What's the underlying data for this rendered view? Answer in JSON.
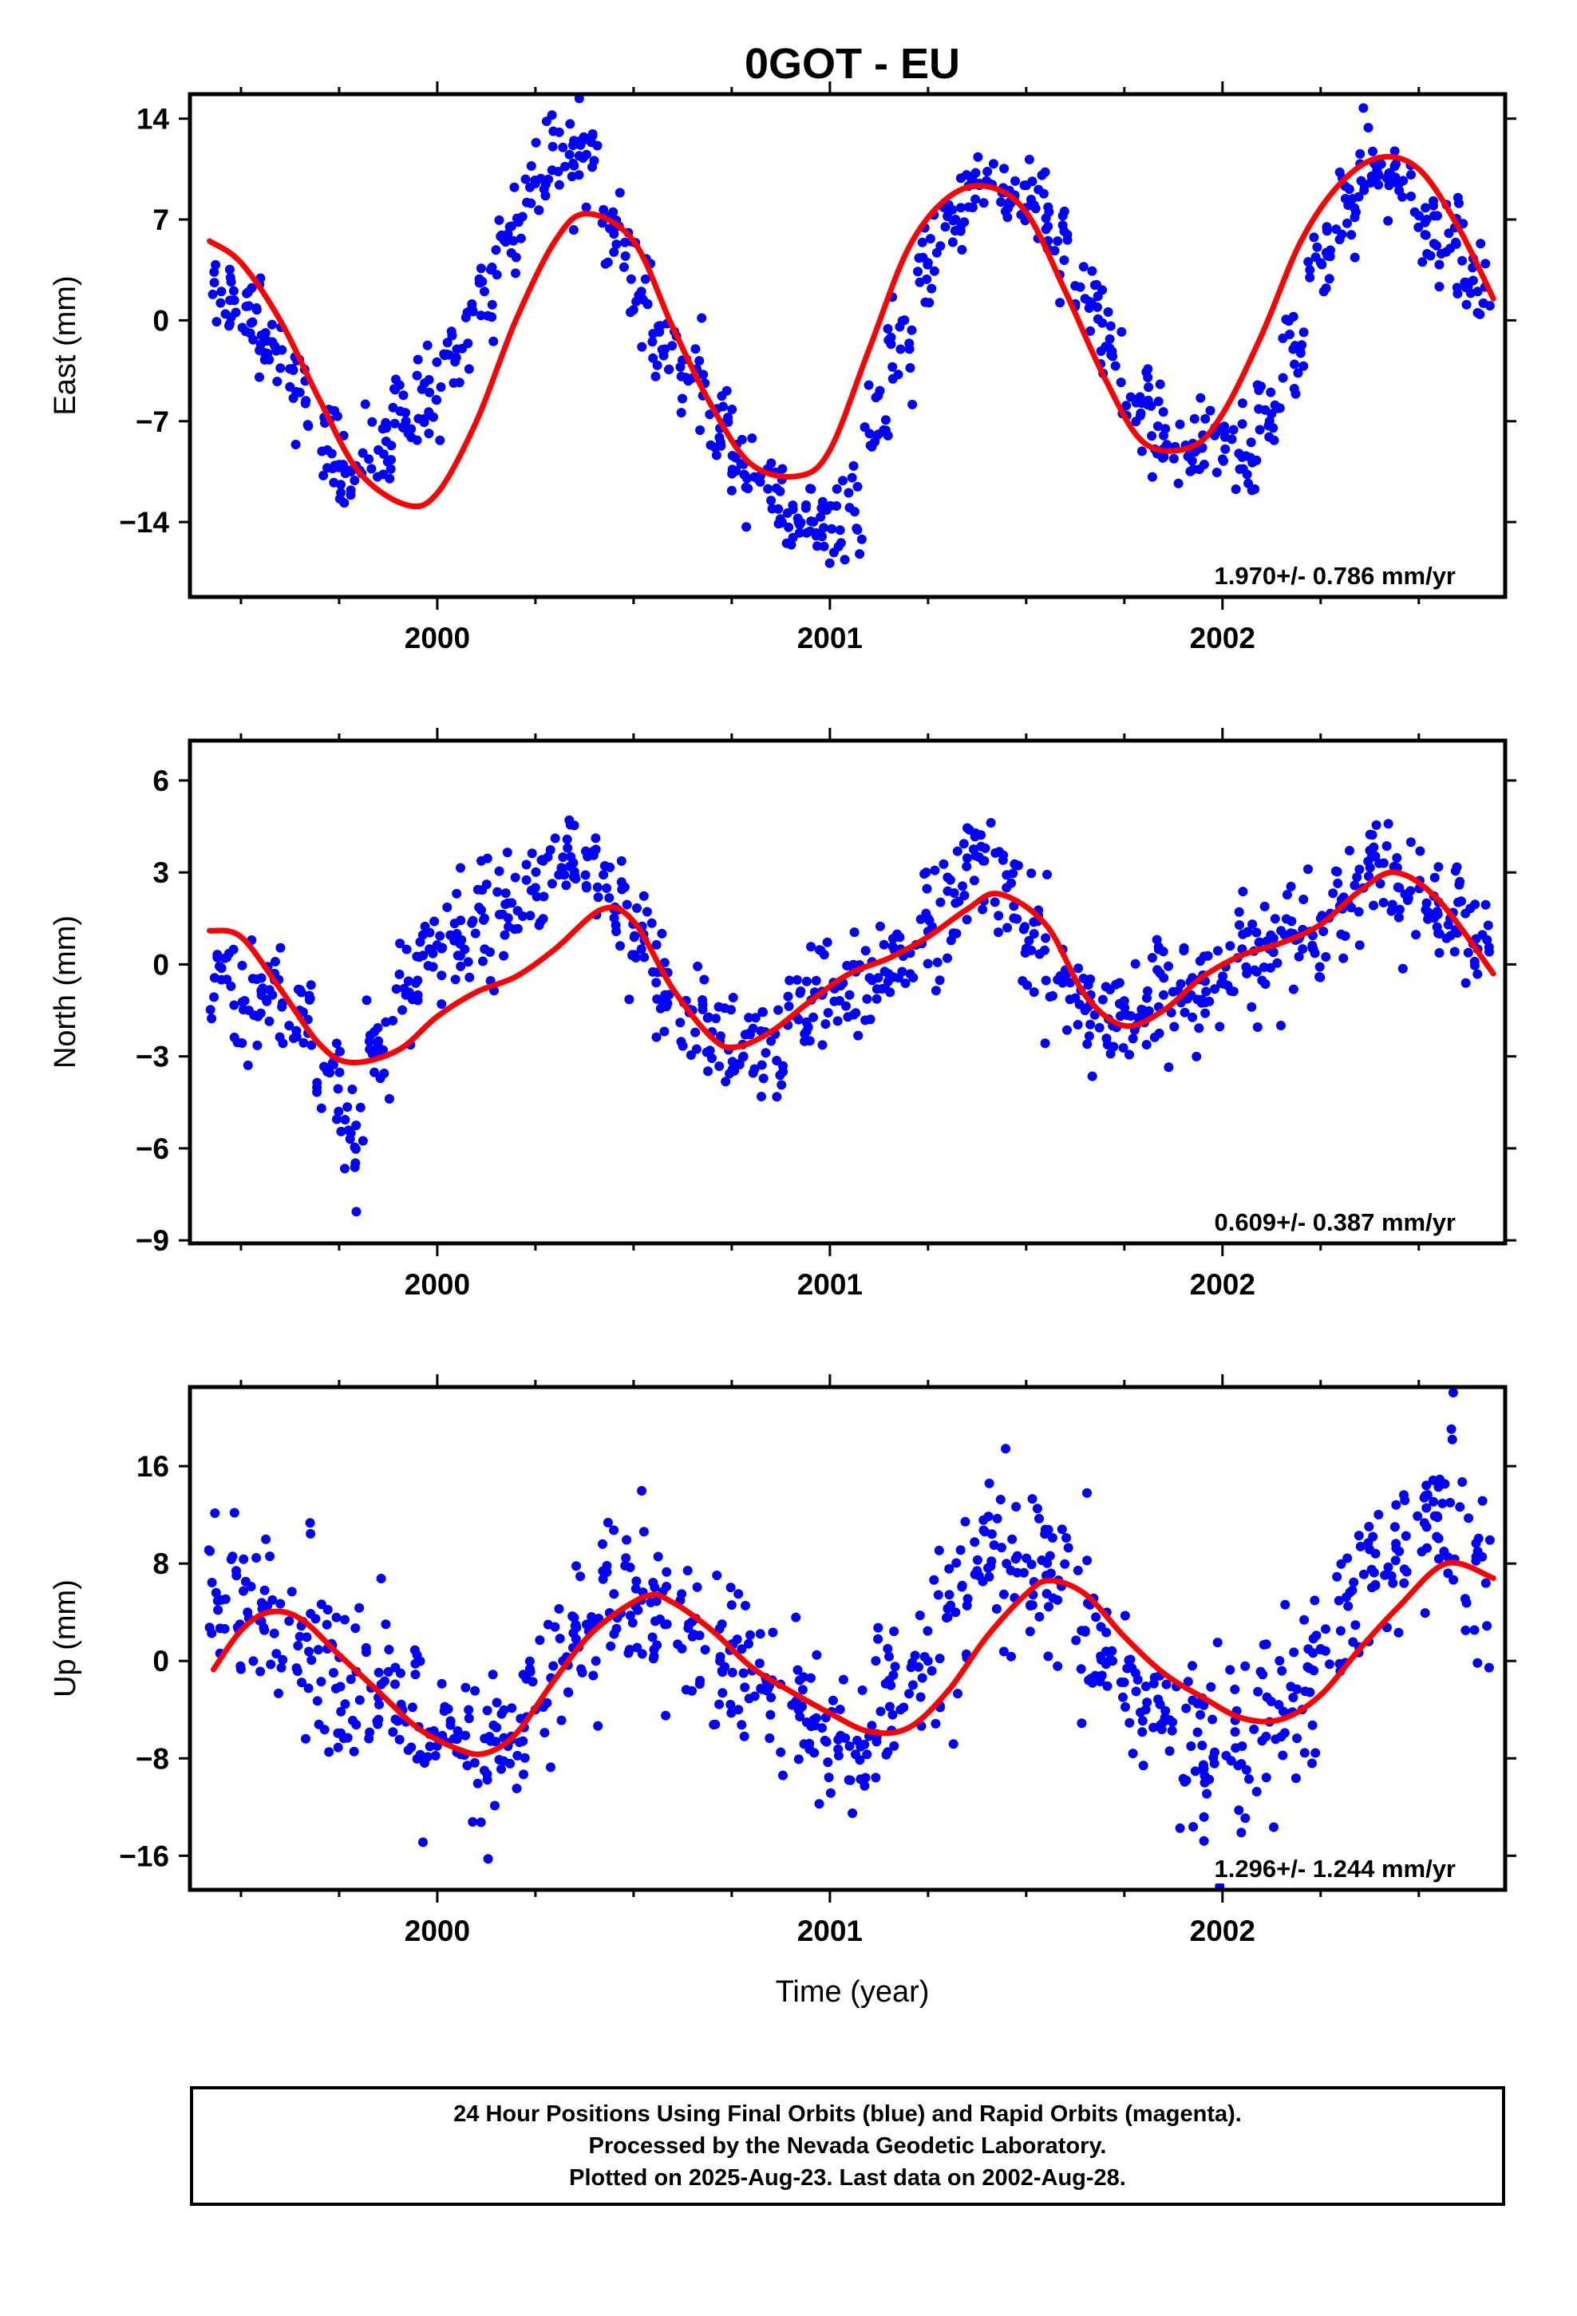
{
  "title": "0GOT - EU",
  "xlabel": "Time (year)",
  "footer": {
    "line1": "24 Hour Positions Using Final Orbits (blue) and Rapid Orbits (magenta).",
    "line2": "Processed by the Nevada Geodetic Laboratory.",
    "line3": "Plotted on 2025-Aug-23. Last data on 2002-Aug-28."
  },
  "colors": {
    "points": "#0000ff",
    "fit": "#ff0000",
    "axes": "#000000"
  },
  "chart_data": [
    {
      "type": "scatter",
      "component": "east",
      "ylabel": "East (mm)",
      "rate_label": "1.970+/- 0.786 mm/yr",
      "xlim": [
        1999.37,
        2002.72
      ],
      "ylim": [
        -19.2,
        15.7
      ],
      "yticks": [
        14,
        7,
        0,
        -7,
        -14
      ],
      "ytick_labels": [
        "14",
        "7",
        "0",
        "−7",
        "−14"
      ],
      "xticks": [
        2000,
        2001,
        2002
      ],
      "xtick_labels": [
        "2000",
        "2001",
        "2002"
      ],
      "series": [
        {
          "kind": "points",
          "x": [
            1999.45,
            1999.52,
            1999.58,
            1999.65,
            1999.72,
            1999.78,
            1999.85,
            1999.92,
            1999.98,
            2000.05,
            2000.12,
            2000.18,
            2000.25,
            2000.32,
            2000.38,
            2000.45,
            2000.52,
            2000.58,
            2000.65,
            2000.72,
            2000.78,
            2000.85,
            2000.92,
            2000.98,
            2001.05,
            2001.12,
            2001.18,
            2001.25,
            2001.32,
            2001.38,
            2001.45,
            2001.52,
            2001.58,
            2001.65,
            2001.72,
            2001.78,
            2001.85,
            2001.92,
            2001.98,
            2002.05,
            2002.12,
            2002.18,
            2002.25,
            2002.32,
            2002.38,
            2002.45,
            2002.52,
            2002.58,
            2002.65
          ],
          "y": [
            2.0,
            1.0,
            -1.5,
            -5.0,
            -9.0,
            -10.5,
            -9.0,
            -7.0,
            -5.0,
            -2.0,
            2.0,
            6.0,
            9.5,
            12.0,
            11.5,
            6.0,
            2.0,
            -2.0,
            -4.0,
            -7.5,
            -10.0,
            -12.5,
            -14.0,
            -15.0,
            -13.0,
            -8.0,
            -2.0,
            4.0,
            7.0,
            9.5,
            9.0,
            8.0,
            5.5,
            1.5,
            -2.5,
            -5.5,
            -8.0,
            -9.0,
            -8.0,
            -9.5,
            -7.0,
            -2.0,
            4.0,
            8.0,
            10.0,
            9.5,
            7.0,
            5.0,
            2.0
          ]
        },
        {
          "kind": "fit",
          "x": [
            1999.42,
            1999.5,
            1999.6,
            1999.7,
            1999.8,
            1999.92,
            2000.0,
            2000.1,
            2000.2,
            2000.3,
            2000.38,
            2000.5,
            2000.6,
            2000.7,
            2000.8,
            2000.92,
            2001.0,
            2001.1,
            2001.2,
            2001.3,
            2001.4,
            2001.5,
            2001.6,
            2001.7,
            2001.8,
            2001.92,
            2002.0,
            2002.1,
            2002.2,
            2002.3,
            2002.4,
            2002.5,
            2002.6,
            2002.69
          ],
          "y": [
            5.5,
            4.0,
            0.0,
            -5.5,
            -10.5,
            -12.8,
            -12.0,
            -7.0,
            0.0,
            5.5,
            7.4,
            5.5,
            -0.5,
            -6.0,
            -10.0,
            -10.8,
            -9.0,
            -2.0,
            5.0,
            8.5,
            9.3,
            7.5,
            2.0,
            -4.0,
            -8.5,
            -8.8,
            -6.5,
            -1.0,
            5.5,
            9.5,
            11.3,
            10.5,
            6.5,
            1.5
          ]
        }
      ]
    },
    {
      "type": "scatter",
      "component": "north",
      "ylabel": "North (mm)",
      "rate_label": "0.609+/- 0.387 mm/yr",
      "xlim": [
        1999.37,
        2002.72
      ],
      "ylim": [
        -9.1,
        7.3
      ],
      "yticks": [
        6,
        3,
        0,
        -3,
        -6,
        -9
      ],
      "ytick_labels": [
        "6",
        "3",
        "0",
        "−3",
        "−6",
        "−9"
      ],
      "xticks": [
        2000,
        2001,
        2002
      ],
      "xtick_labels": [
        "2000",
        "2001",
        "2002"
      ],
      "series": [
        {
          "kind": "points",
          "x": [
            1999.45,
            1999.52,
            1999.58,
            1999.65,
            1999.72,
            1999.78,
            1999.85,
            1999.92,
            1999.98,
            2000.05,
            2000.12,
            2000.18,
            2000.25,
            2000.32,
            2000.38,
            2000.45,
            2000.52,
            2000.58,
            2000.65,
            2000.72,
            2000.78,
            2000.85,
            2000.92,
            2000.98,
            2001.05,
            2001.12,
            2001.18,
            2001.25,
            2001.32,
            2001.38,
            2001.45,
            2001.52,
            2001.58,
            2001.65,
            2001.72,
            2001.78,
            2001.85,
            2001.92,
            2001.98,
            2002.05,
            2002.12,
            2002.18,
            2002.25,
            2002.32,
            2002.38,
            2002.45,
            2002.52,
            2002.58,
            2002.65
          ],
          "y": [
            -0.5,
            -1.5,
            -1.0,
            -1.5,
            -3.5,
            -5.5,
            -2.5,
            -1.0,
            0.5,
            1.0,
            1.5,
            2.0,
            2.5,
            3.5,
            2.5,
            1.8,
            0.5,
            -1.0,
            -1.5,
            -2.5,
            -3.0,
            -2.5,
            -1.8,
            -1.0,
            -1.0,
            -0.8,
            0.5,
            1.5,
            2.0,
            3.5,
            2.5,
            1.0,
            -0.5,
            -1.5,
            -2.0,
            -2.0,
            -1.0,
            -1.0,
            -0.8,
            0.5,
            0.5,
            1.0,
            1.5,
            2.0,
            3.5,
            2.5,
            2.0,
            1.5,
            0.5
          ]
        },
        {
          "kind": "fit",
          "x": [
            1999.42,
            1999.5,
            1999.6,
            1999.7,
            1999.78,
            1999.9,
            2000.0,
            2000.1,
            2000.2,
            2000.3,
            2000.42,
            2000.5,
            2000.6,
            2000.7,
            2000.76,
            2000.85,
            2000.95,
            2001.05,
            2001.15,
            2001.25,
            2001.35,
            2001.43,
            2001.55,
            2001.65,
            2001.75,
            2001.85,
            2001.95,
            2002.05,
            2002.15,
            2002.25,
            2002.35,
            2002.44,
            2002.55,
            2002.69
          ],
          "y": [
            1.1,
            0.9,
            -0.8,
            -2.6,
            -3.2,
            -2.8,
            -1.7,
            -0.9,
            -0.4,
            0.5,
            1.8,
            1.4,
            -0.8,
            -2.4,
            -2.7,
            -2.2,
            -1.2,
            -0.3,
            0.2,
            0.9,
            1.8,
            2.3,
            1.3,
            -1.0,
            -2.0,
            -1.5,
            -0.4,
            0.3,
            0.7,
            1.3,
            2.4,
            3.0,
            2.1,
            -0.3
          ]
        }
      ]
    },
    {
      "type": "scatter",
      "component": "up",
      "ylabel": "Up (mm)",
      "rate_label": "1.296+/- 1.244 mm/yr",
      "xlim": [
        1999.37,
        2002.72
      ],
      "ylim": [
        -18.8,
        22.5
      ],
      "yticks": [
        16,
        8,
        0,
        -8,
        -16
      ],
      "ytick_labels": [
        "16",
        "8",
        "0",
        "−8",
        "−16"
      ],
      "xticks": [
        2000,
        2001,
        2002
      ],
      "xtick_labels": [
        "2000",
        "2001",
        "2002"
      ],
      "series": [
        {
          "kind": "points",
          "x": [
            1999.45,
            1999.52,
            1999.58,
            1999.65,
            1999.72,
            1999.78,
            1999.85,
            1999.92,
            1999.98,
            2000.05,
            2000.12,
            2000.18,
            2000.25,
            2000.32,
            2000.38,
            2000.45,
            2000.52,
            2000.58,
            2000.65,
            2000.72,
            2000.78,
            2000.85,
            2000.92,
            2000.98,
            2001.05,
            2001.12,
            2001.18,
            2001.25,
            2001.32,
            2001.38,
            2001.45,
            2001.52,
            2001.58,
            2001.65,
            2001.72,
            2001.78,
            2001.85,
            2001.92,
            2001.98,
            2002.05,
            2002.12,
            2002.18,
            2002.25,
            2002.32,
            2002.38,
            2002.45,
            2002.52,
            2002.58,
            2002.65
          ],
          "y": [
            5.0,
            3.5,
            5.0,
            2.0,
            1.0,
            -1.5,
            -3.0,
            -5.0,
            -6.0,
            -7.5,
            -9.0,
            -7.0,
            -4.0,
            0.0,
            3.0,
            5.5,
            5.0,
            3.0,
            2.0,
            0.0,
            -1.0,
            -3.0,
            -4.0,
            -5.5,
            -7.0,
            -6.0,
            -4.0,
            0.0,
            4.0,
            7.0,
            8.0,
            6.5,
            5.0,
            2.5,
            0.0,
            -2.5,
            -5.0,
            -7.0,
            -7.5,
            -7.0,
            -5.0,
            -3.0,
            1.0,
            4.5,
            7.5,
            9.0,
            11.0,
            13.0,
            9.0
          ]
        },
        {
          "kind": "fit",
          "x": [
            1999.43,
            1999.5,
            1999.57,
            1999.65,
            1999.75,
            1999.85,
            1999.95,
            2000.05,
            2000.12,
            2000.2,
            2000.3,
            2000.4,
            2000.53,
            2000.6,
            2000.7,
            2000.8,
            2000.9,
            2001.0,
            2001.1,
            2001.2,
            2001.3,
            2001.4,
            2001.5,
            2001.56,
            2001.65,
            2001.75,
            2001.85,
            2001.95,
            2002.05,
            2002.15,
            2002.25,
            2002.35,
            2002.45,
            2002.57,
            2002.69
          ],
          "y": [
            -0.7,
            2.5,
            4.0,
            3.5,
            0.5,
            -2.5,
            -5.5,
            -7.2,
            -7.6,
            -6.0,
            -1.5,
            2.5,
            5.3,
            4.8,
            2.5,
            -0.5,
            -2.5,
            -4.3,
            -5.8,
            -5.5,
            -2.5,
            2.0,
            5.5,
            6.6,
            5.5,
            2.0,
            -1.0,
            -3.0,
            -4.7,
            -4.8,
            -2.8,
            1.0,
            4.5,
            8.0,
            6.8
          ]
        }
      ]
    }
  ]
}
